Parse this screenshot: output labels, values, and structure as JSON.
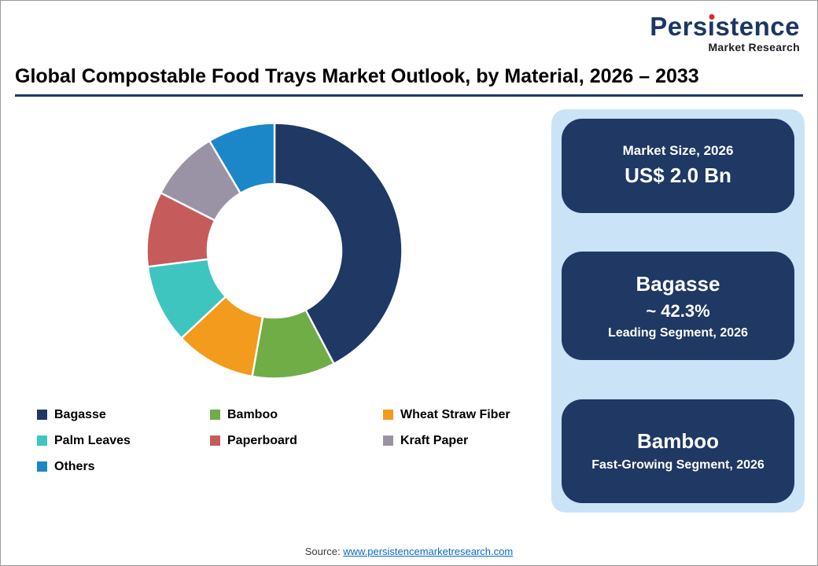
{
  "logo": {
    "pre": "Pers",
    "dotless_i": "ı",
    "post": "stence",
    "subtitle": "Market Research",
    "color": "#1B3764",
    "accent_color": "#E3262A"
  },
  "title": "Global Compostable Food Trays Market Outlook, by Material, 2026 – 2033",
  "accent": "#1F3864",
  "chart_data": {
    "type": "pie",
    "donut": true,
    "title": "Global Compostable Food Trays Market Outlook, by Material, 2026 – 2033",
    "start_angle_deg": 0,
    "direction": "clockwise",
    "categories": [
      "Bagasse",
      "Bamboo",
      "Wheat Straw Fiber",
      "Palm Leaves",
      "Paperboard",
      "Kraft Paper",
      "Others"
    ],
    "values": [
      42.3,
      10.5,
      10.2,
      10.0,
      9.5,
      9.0,
      8.5
    ],
    "unit": "%",
    "colors": [
      "#1F3864",
      "#70AD47",
      "#F29B1D",
      "#3FC5C0",
      "#C65B5B",
      "#9A93A6",
      "#1B87C9"
    ],
    "legend_position": "bottom",
    "labeled_values": {
      "Bagasse": "~ 42.3%"
    }
  },
  "panel": {
    "background": "#CBE3F6",
    "card_color": "#1F3864",
    "card1": {
      "line1": "Market Size, 2026",
      "line2": "US$ 2.0 Bn"
    },
    "card2": {
      "line1": "Bagasse",
      "line2": "~ 42.3%",
      "line3": "Leading Segment, 2026"
    },
    "card3": {
      "line1": "Bamboo",
      "line2": "Fast-Growing Segment, 2026"
    }
  },
  "footer": {
    "source_label": "Source: ",
    "source_url": "www.persistencemarketresearch.com"
  }
}
